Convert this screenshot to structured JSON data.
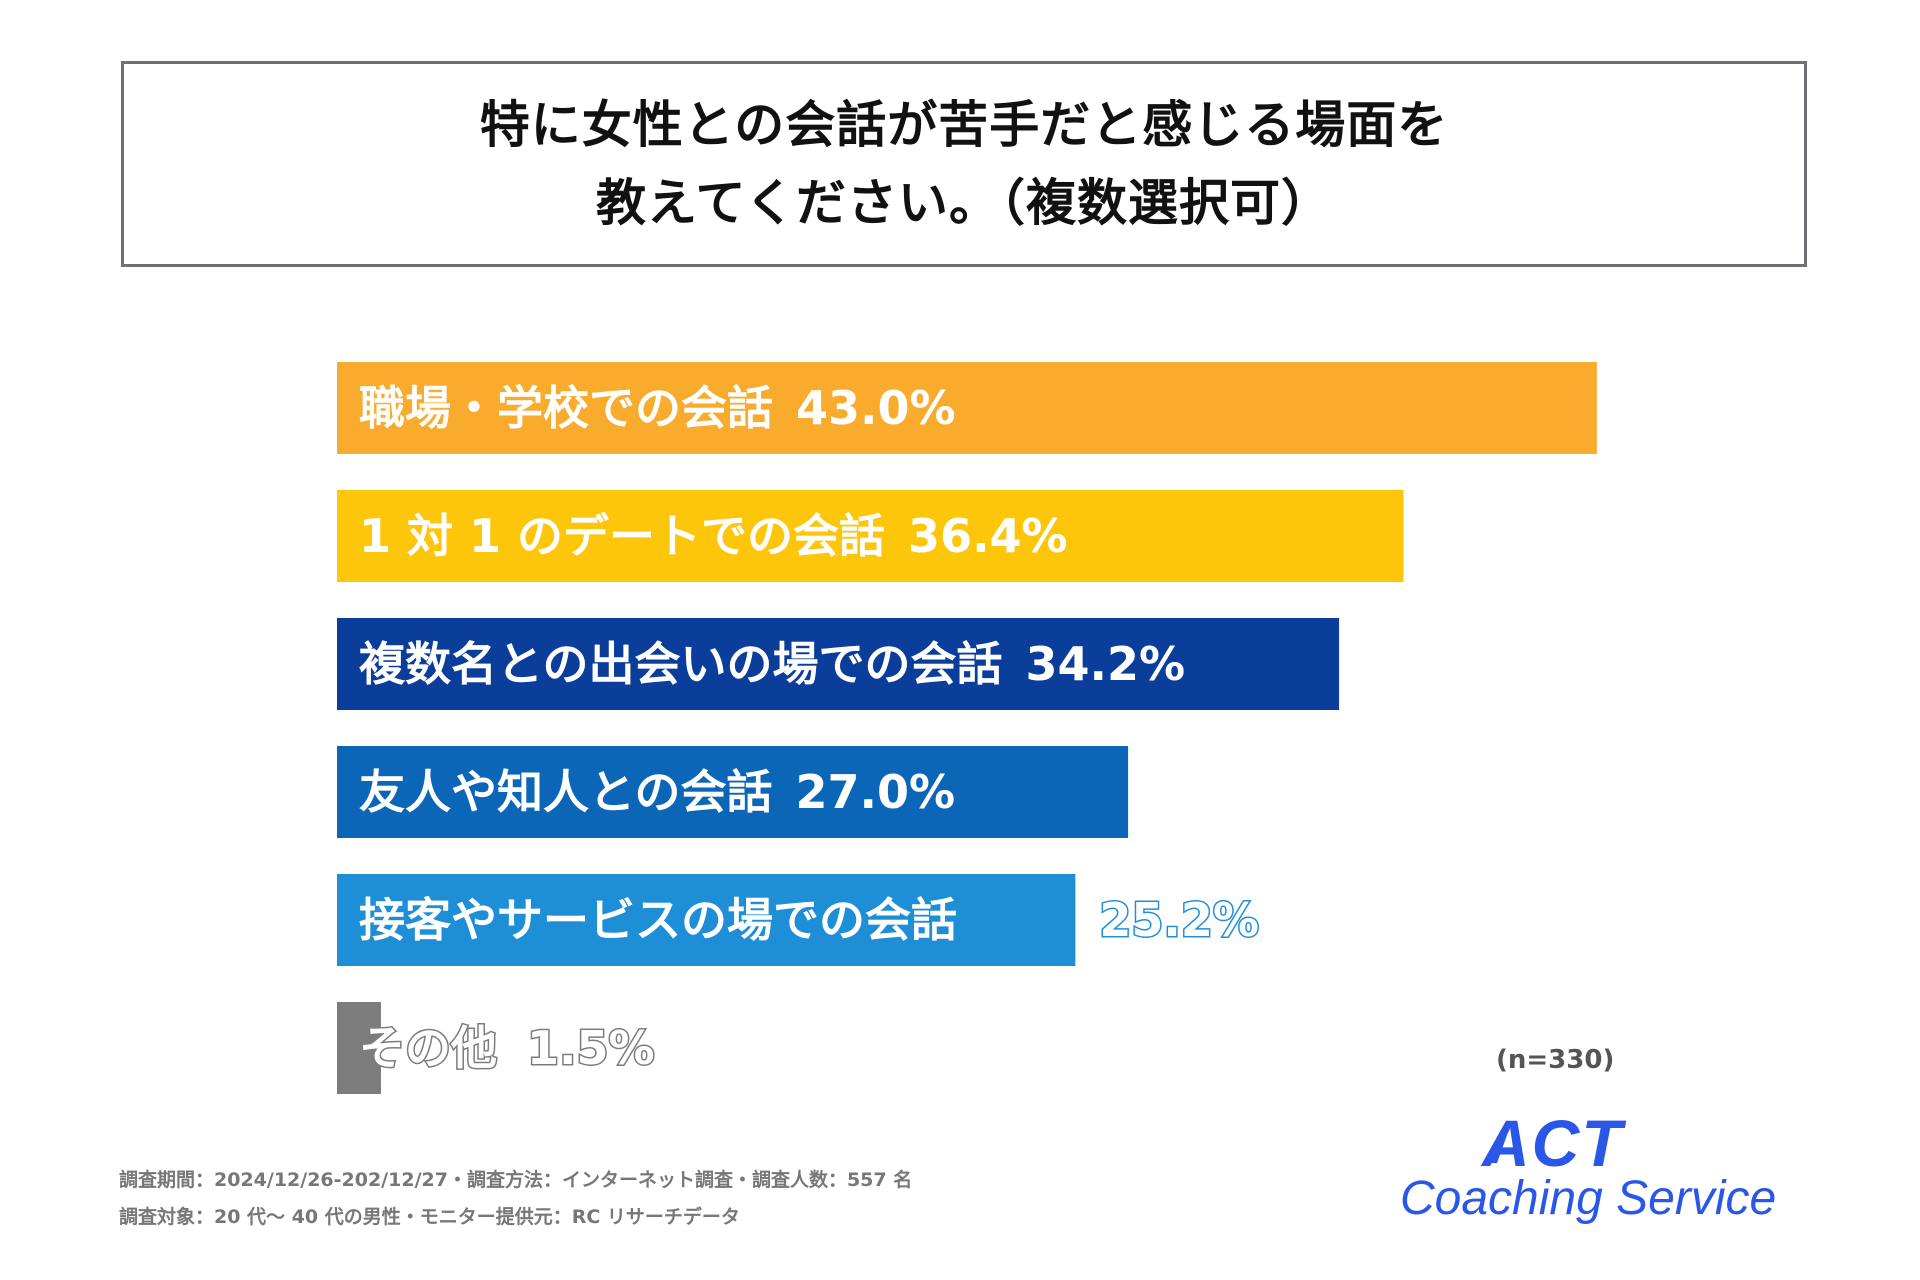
{
  "title": {
    "line1": "特に女性との会話が苦手だと感じる場面を",
    "line2": "教えてください。（複数選択可）"
  },
  "chart_data": {
    "type": "bar",
    "orientation": "horizontal",
    "title": "特に女性との会話が苦手だと感じる場面を教えてください。（複数選択可）",
    "categories": [
      "職場・学校での会話",
      "1 対 1 のデートでの会話",
      "複数名との出会いの場での会話",
      "友人や知人との会話",
      "接客やサービスの場での会話",
      "その他"
    ],
    "values": [
      43.0,
      36.4,
      34.2,
      27.0,
      25.2,
      1.5
    ],
    "value_labels": [
      "43.0%",
      "36.4%",
      "34.2%",
      "27.0%",
      "25.2%",
      "1.5%"
    ],
    "colors": [
      "#f9ab2d",
      "#fdc60b",
      "#0b3d9a",
      "#0c66b8",
      "#1e8fd6",
      "#7c7c7c"
    ],
    "unit": "%",
    "xlim": [
      0,
      50
    ],
    "legend": "none",
    "grid": false
  },
  "sample": "(n=330)",
  "footnotes": {
    "line1": "調査期間：2024/12/26-202/12/27・調査方法：インターネット調査・調査人数：557 名",
    "line2": "調査対象：20 代〜 40 代の男性・モニター提供元：RC リサーチデータ"
  },
  "logo": {
    "top": "ACT",
    "bottom": "Coaching Service",
    "color": "#2b57e8"
  }
}
